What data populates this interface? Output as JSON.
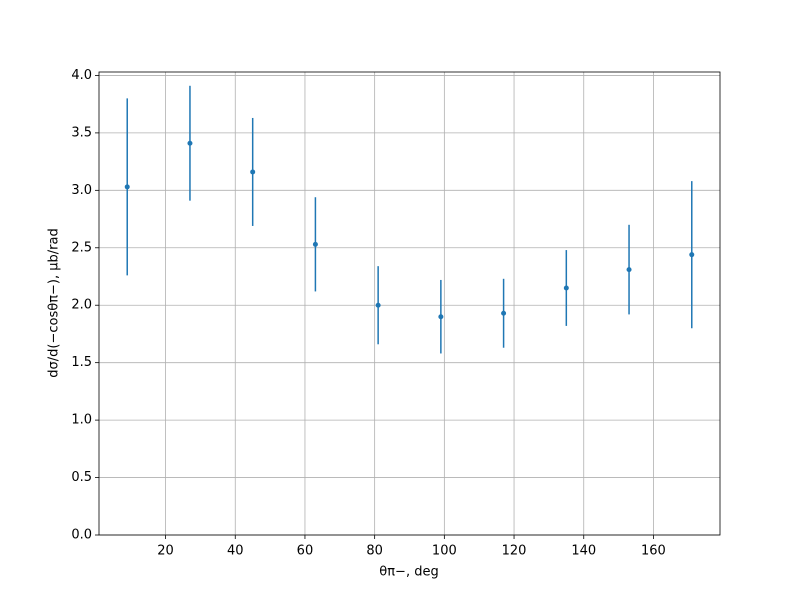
{
  "chart_data": {
    "type": "errorbar",
    "x": [
      9,
      27,
      45,
      63,
      81,
      99,
      117,
      135,
      153,
      171
    ],
    "values": [
      3.03,
      3.41,
      3.16,
      2.53,
      2.0,
      1.9,
      1.93,
      2.15,
      2.31,
      2.44
    ],
    "errors": [
      0.77,
      0.5,
      0.47,
      0.41,
      0.34,
      0.32,
      0.3,
      0.33,
      0.39,
      0.64
    ],
    "color": "#1f77b4",
    "xlabel": "θπ−, deg",
    "ylabel": "dσ/d(−cosθπ−), μb/rad",
    "xlim": [
      0.9,
      179.1
    ],
    "ylim": [
      0,
      4.03
    ],
    "xticks": [
      20,
      40,
      60,
      80,
      100,
      120,
      140,
      160
    ],
    "yticks": [
      {
        "value": 0,
        "label": "0.0"
      },
      {
        "value": 0.5,
        "label": "0.5"
      },
      {
        "value": 1,
        "label": "1.0"
      },
      {
        "value": 1.5,
        "label": "1.5"
      },
      {
        "value": 2,
        "label": "2.0"
      },
      {
        "value": 2.5,
        "label": "2.5"
      },
      {
        "value": 3,
        "label": "3.0"
      },
      {
        "value": 3.5,
        "label": "3.5"
      },
      {
        "value": 4,
        "label": "4.0"
      }
    ],
    "grid": true
  }
}
